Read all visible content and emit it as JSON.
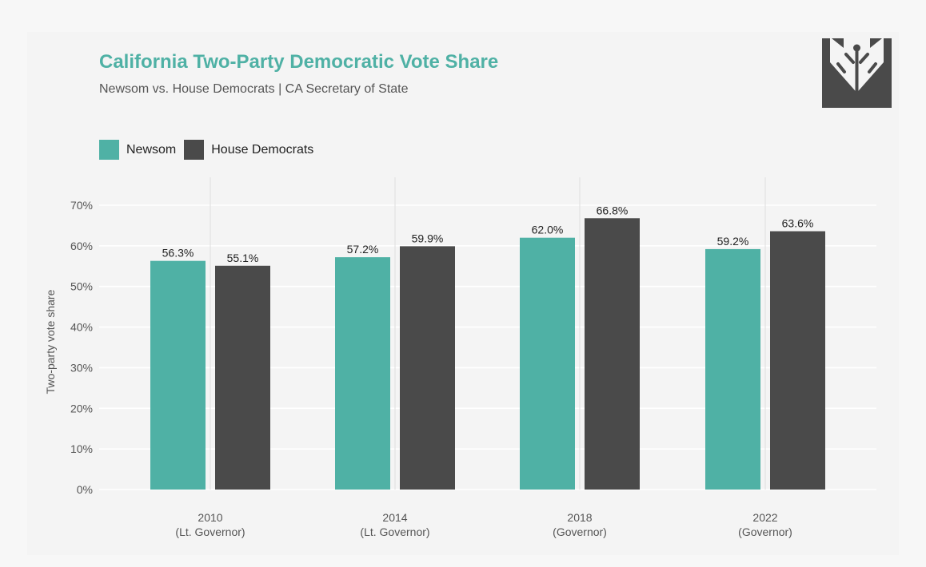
{
  "header": {
    "title": "California Two-Party Democratic Vote Share",
    "subtitle": "Newsom vs. House Democrats | CA Secretary of State"
  },
  "logo": {
    "icon": "tree-circuit-icon",
    "color": "#4a4a4a"
  },
  "colors": {
    "title": "#4fb1a5",
    "newsom": "#4fb1a5",
    "house_democrats": "#4a4a4a"
  },
  "chart_data": {
    "type": "bar",
    "title": "California Two-Party Democratic Vote Share",
    "subtitle": "Newsom vs. House Democrats | CA Secretary of State",
    "ylabel": "Two-party vote share",
    "xlabel": "",
    "ylim": [
      0,
      70
    ],
    "y_ticks": [
      "0%",
      "10%",
      "20%",
      "30%",
      "40%",
      "50%",
      "60%",
      "70%"
    ],
    "grid": true,
    "legend_position": "top-left",
    "categories": [
      {
        "year": "2010",
        "office": "(Lt. Governor)"
      },
      {
        "year": "2014",
        "office": "(Lt. Governor)"
      },
      {
        "year": "2018",
        "office": "(Governor)"
      },
      {
        "year": "2022",
        "office": "(Governor)"
      }
    ],
    "series": [
      {
        "name": "Newsom",
        "color": "#4fb1a5",
        "values": [
          56.3,
          57.2,
          62.0,
          59.2
        ],
        "labels": [
          "56.3%",
          "57.2%",
          "62.0%",
          "59.2%"
        ]
      },
      {
        "name": "House Democrats",
        "color": "#4a4a4a",
        "values": [
          55.1,
          59.9,
          66.8,
          63.6
        ],
        "labels": [
          "55.1%",
          "59.9%",
          "66.8%",
          "63.6%"
        ]
      }
    ]
  }
}
